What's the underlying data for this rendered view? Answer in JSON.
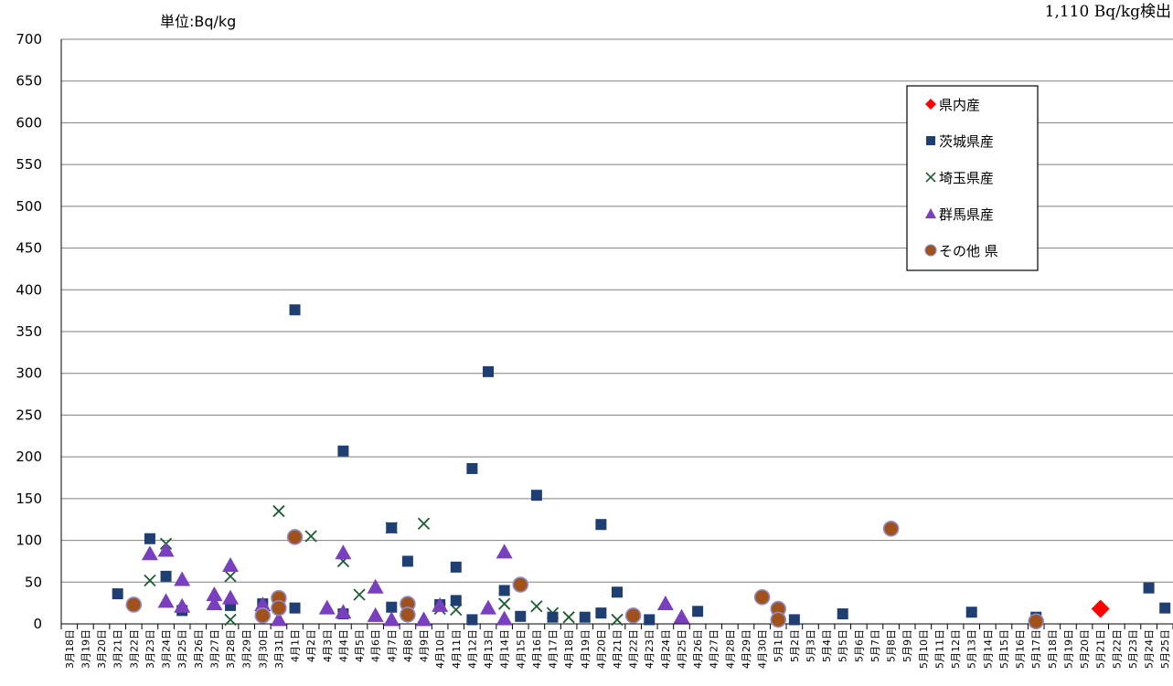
{
  "chart_data": {
    "type": "scatter",
    "title": "",
    "xlabel": "",
    "ylabel": "",
    "unit_label": "単位:Bq/kg",
    "note": "1,110 Bq/kg検出",
    "ylim": [
      0,
      700
    ],
    "yticks": [
      0,
      50,
      100,
      150,
      200,
      250,
      300,
      350,
      400,
      450,
      500,
      550,
      600,
      650,
      700
    ],
    "grid": true,
    "legend_position": "top-right",
    "categories": [
      "3月18日",
      "3月19日",
      "3月20日",
      "3月21日",
      "3月22日",
      "3月23日",
      "3月24日",
      "3月25日",
      "3月26日",
      "3月27日",
      "3月28日",
      "3月29日",
      "3月30日",
      "3月31日",
      "4月1日",
      "4月2日",
      "4月3日",
      "4月4日",
      "4月5日",
      "4月6日",
      "4月7日",
      "4月8日",
      "4月9日",
      "4月10日",
      "4月11日",
      "4月12日",
      "4月13日",
      "4月14日",
      "4月15日",
      "4月16日",
      "4月17日",
      "4月18日",
      "4月19日",
      "4月20日",
      "4月21日",
      "4月22日",
      "4月23日",
      "4月24日",
      "4月25日",
      "4月26日",
      "4月27日",
      "4月28日",
      "4月29日",
      "4月30日",
      "5月1日",
      "5月2日",
      "5月3日",
      "5月4日",
      "5月5日",
      "5月6日",
      "5月7日",
      "5月8日",
      "5月9日",
      "5月10日",
      "5月11日",
      "5月12日",
      "5月13日",
      "5月14日",
      "5月15日",
      "5月16日",
      "5月17日",
      "5月18日",
      "5月19日",
      "5月20日",
      "5月21日",
      "5月22日",
      "5月23日",
      "5月24日",
      "5月25日"
    ],
    "series": [
      {
        "name": "県内産",
        "marker": "diamond",
        "color": "#ff0000",
        "points": [
          [
            64,
            18
          ]
        ]
      },
      {
        "name": "茨城県産",
        "marker": "square",
        "color": "#1f3f73",
        "points": [
          [
            3,
            36
          ],
          [
            5,
            102
          ],
          [
            6,
            57
          ],
          [
            7,
            16
          ],
          [
            10,
            22
          ],
          [
            12,
            24
          ],
          [
            14,
            19
          ],
          [
            14,
            376
          ],
          [
            17,
            207
          ],
          [
            17,
            12
          ],
          [
            20,
            20
          ],
          [
            20,
            115
          ],
          [
            21,
            75
          ],
          [
            23,
            23
          ],
          [
            24,
            68
          ],
          [
            24,
            28
          ],
          [
            25,
            5
          ],
          [
            25,
            186
          ],
          [
            26,
            302
          ],
          [
            27,
            40
          ],
          [
            28,
            9
          ],
          [
            29,
            154
          ],
          [
            30,
            8
          ],
          [
            32,
            8
          ],
          [
            33,
            13
          ],
          [
            33,
            119
          ],
          [
            34,
            38
          ],
          [
            36,
            5
          ],
          [
            39,
            15
          ],
          [
            45,
            5
          ],
          [
            48,
            12
          ],
          [
            56,
            14
          ],
          [
            60,
            8
          ],
          [
            67,
            43
          ],
          [
            68,
            19
          ]
        ]
      },
      {
        "name": "埼玉県産",
        "marker": "x",
        "color": "#1e5c34",
        "points": [
          [
            5,
            52
          ],
          [
            6,
            96
          ],
          [
            10,
            57
          ],
          [
            10,
            5
          ],
          [
            13,
            135
          ],
          [
            15,
            105
          ],
          [
            17,
            75
          ],
          [
            18,
            35
          ],
          [
            20,
            115
          ],
          [
            22,
            120
          ],
          [
            23,
            18
          ],
          [
            24,
            17
          ],
          [
            27,
            24
          ],
          [
            29,
            21
          ],
          [
            30,
            13
          ],
          [
            31,
            8
          ],
          [
            34,
            5
          ]
        ]
      },
      {
        "name": "群馬県産",
        "marker": "triangle",
        "color": "#7a3fbf",
        "points": [
          [
            5,
            84
          ],
          [
            6,
            88
          ],
          [
            6,
            27
          ],
          [
            7,
            53
          ],
          [
            7,
            21
          ],
          [
            9,
            35
          ],
          [
            9,
            24
          ],
          [
            10,
            70
          ],
          [
            10,
            31
          ],
          [
            12,
            23
          ],
          [
            13,
            5
          ],
          [
            16,
            19
          ],
          [
            17,
            85
          ],
          [
            17,
            14
          ],
          [
            19,
            44
          ],
          [
            19,
            10
          ],
          [
            20,
            5
          ],
          [
            22,
            5
          ],
          [
            23,
            22
          ],
          [
            26,
            19
          ],
          [
            27,
            86
          ],
          [
            27,
            6
          ],
          [
            37,
            24
          ],
          [
            38,
            8
          ]
        ]
      },
      {
        "name": "その他 県",
        "marker": "circle",
        "color": "#a0521a",
        "points": [
          [
            4,
            23
          ],
          [
            12,
            10
          ],
          [
            13,
            31
          ],
          [
            13,
            19
          ],
          [
            14,
            104
          ],
          [
            21,
            24
          ],
          [
            21,
            11
          ],
          [
            28,
            47
          ],
          [
            35,
            10
          ],
          [
            43,
            32
          ],
          [
            44,
            18
          ],
          [
            44,
            5
          ],
          [
            51,
            114
          ],
          [
            60,
            3
          ]
        ]
      }
    ]
  }
}
